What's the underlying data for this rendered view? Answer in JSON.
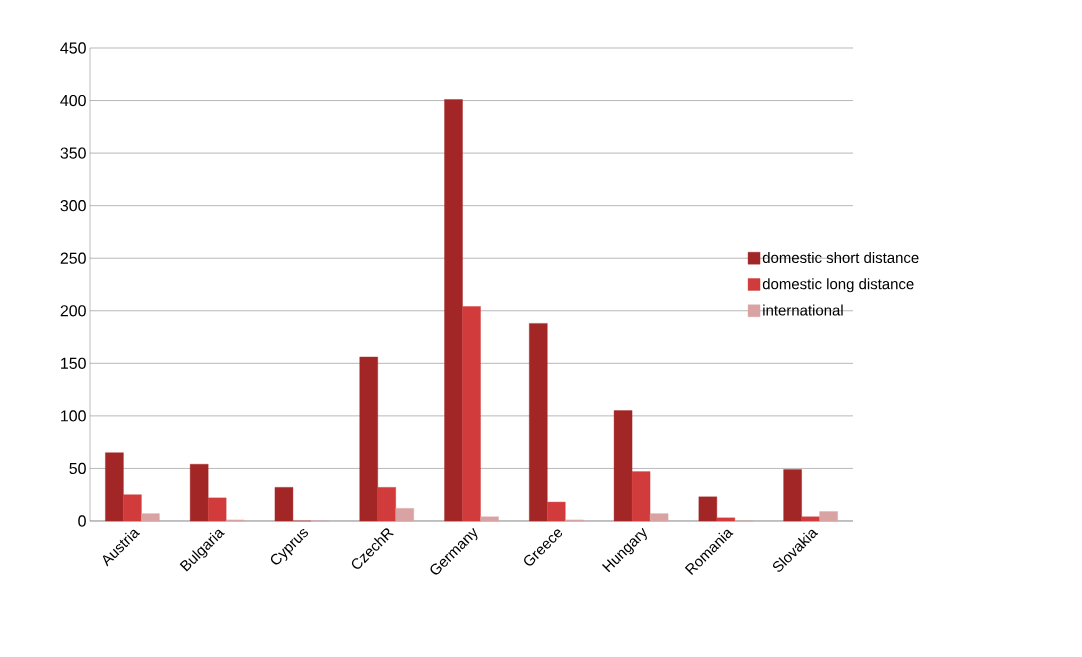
{
  "chart_data": {
    "type": "bar",
    "categories": [
      "Austria",
      "Bulgaria",
      "Cyprus",
      "CzechR",
      "Germany",
      "Greece",
      "Hungary",
      "Romania",
      "Slovakia"
    ],
    "series": [
      {
        "name": "domestic short distance",
        "color": "#a32626",
        "values": [
          65,
          54,
          32,
          156,
          401,
          188,
          105,
          23,
          49
        ]
      },
      {
        "name": "domestic long distance",
        "color": "#d13b3b",
        "values": [
          25,
          22,
          0,
          32,
          204,
          18,
          47,
          3,
          4
        ]
      },
      {
        "name": "international",
        "color": "#d9a3a3",
        "values": [
          7,
          1,
          0,
          12,
          4,
          1,
          7,
          0,
          9
        ]
      }
    ],
    "ylim": [
      0,
      450
    ],
    "yticks": [
      0,
      50,
      100,
      150,
      200,
      250,
      300,
      350,
      400,
      450
    ],
    "grid": "y",
    "legend": "right"
  }
}
